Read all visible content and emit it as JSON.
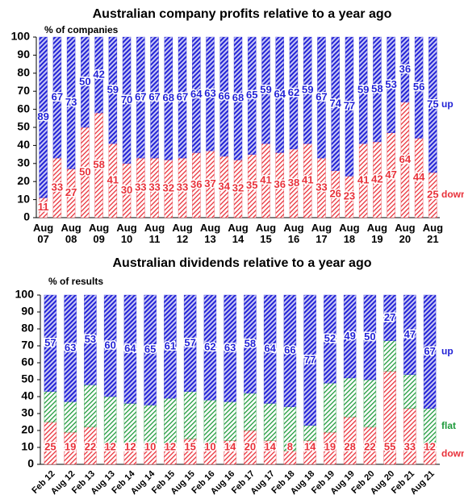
{
  "chart_data": [
    {
      "type": "bar",
      "stacked": true,
      "title": "Australian company profits relative to a year ago",
      "y_label": "% of companies",
      "categories": [
        "Aug 07",
        null,
        "Aug 08",
        null,
        "Aug 09",
        null,
        "Aug 10",
        null,
        "Aug 11",
        null,
        "Aug 12",
        null,
        "Aug 13",
        null,
        "Aug 14",
        null,
        "Aug 15",
        null,
        "Aug 16",
        null,
        "Aug 17",
        null,
        "Aug 18",
        null,
        "Aug 19",
        null,
        "Aug 20",
        null,
        "Aug 21"
      ],
      "series": [
        {
          "name": "down",
          "color": "#e8313a",
          "values": [
            11,
            33,
            27,
            50,
            58,
            41,
            30,
            33,
            33,
            32,
            33,
            36,
            37,
            34,
            32,
            35,
            41,
            36,
            38,
            41,
            33,
            26,
            23,
            41,
            42,
            47,
            64,
            44,
            25
          ]
        },
        {
          "name": "up",
          "color": "#2323d6",
          "values": [
            89,
            67,
            73,
            50,
            42,
            59,
            70,
            67,
            67,
            68,
            67,
            64,
            63,
            66,
            68,
            65,
            59,
            64,
            62,
            59,
            67,
            74,
            77,
            59,
            58,
            53,
            36,
            56,
            75
          ]
        }
      ],
      "ylim": [
        0,
        100
      ],
      "yticks": [
        0,
        10,
        20,
        30,
        40,
        50,
        60,
        70,
        80,
        90,
        100
      ]
    },
    {
      "type": "bar",
      "stacked": true,
      "title": "Australian dividends relative to a year ago",
      "y_label": "% of results",
      "categories": [
        "Feb 12",
        "Aug 12",
        "Feb 13",
        "Aug 13",
        "Feb 14",
        "Aug 14",
        "Feb 15",
        "Aug 15",
        "Feb 16",
        "Aug 16",
        "Feb 17",
        "Aug 17",
        "Feb 18",
        "Aug 18",
        "Feb 19",
        "Aug 19",
        "Feb 20",
        "Aug 20",
        "Feb 21",
        "Aug 21"
      ],
      "series": [
        {
          "name": "down",
          "color": "#e8313a",
          "values": [
            25,
            19,
            22,
            12,
            12,
            10,
            12,
            15,
            10,
            14,
            20,
            14,
            8,
            14,
            19,
            28,
            22,
            55,
            33,
            12
          ]
        },
        {
          "name": "flat",
          "color": "#1f9a3c",
          "show_values": false,
          "values": [
            18,
            18,
            25,
            28,
            24,
            25,
            27,
            28,
            28,
            23,
            22,
            22,
            26,
            9,
            29,
            23,
            28,
            18,
            20,
            21
          ]
        },
        {
          "name": "up",
          "color": "#2323d6",
          "values": [
            57,
            63,
            53,
            60,
            64,
            65,
            61,
            57,
            62,
            63,
            58,
            64,
            66,
            77,
            52,
            49,
            50,
            27,
            47,
            67
          ]
        }
      ],
      "ylim": [
        0,
        100
      ],
      "yticks": [
        0,
        10,
        20,
        30,
        40,
        50,
        60,
        70,
        80,
        90,
        100
      ]
    }
  ]
}
